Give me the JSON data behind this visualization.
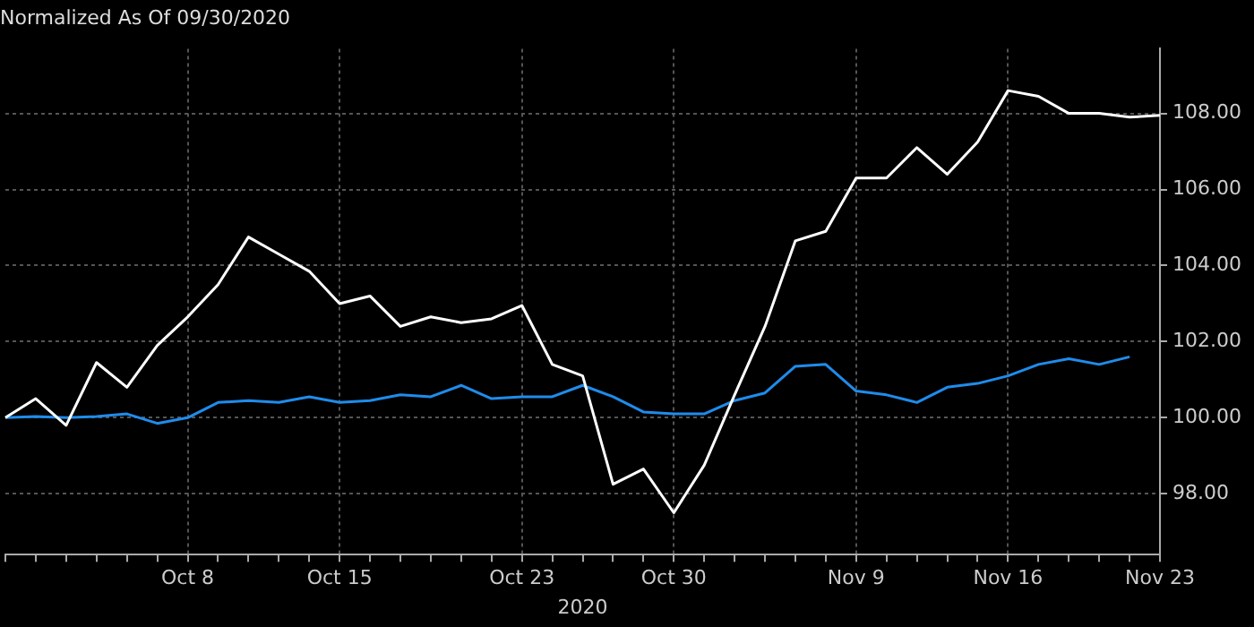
{
  "chart_data": {
    "type": "line",
    "title": "Normalized As Of 09/30/2020",
    "xlabel": "2020",
    "categories": [
      null,
      null,
      null,
      null,
      null,
      null,
      "Oct 8",
      null,
      null,
      null,
      null,
      "Oct 15",
      null,
      null,
      null,
      null,
      null,
      "Oct 23",
      null,
      null,
      null,
      null,
      "Oct 30",
      null,
      null,
      null,
      null,
      null,
      "Nov 9",
      null,
      null,
      null,
      null,
      "Nov 16",
      null,
      null,
      null,
      null,
      "Nov 23"
    ],
    "series": [
      {
        "color": "#ffffff",
        "values": [
          100.0,
          100.5,
          99.8,
          101.45,
          100.8,
          101.9,
          102.65,
          103.5,
          104.75,
          104.3,
          103.85,
          103.0,
          103.2,
          102.4,
          102.65,
          102.5,
          102.6,
          102.95,
          101.4,
          101.1,
          98.25,
          98.65,
          97.5,
          98.75,
          100.6,
          102.4,
          104.65,
          104.9,
          106.3,
          106.3,
          107.1,
          106.4,
          107.25,
          108.6,
          108.45,
          108.0,
          108.0,
          107.9,
          107.95
        ]
      },
      {
        "color": "#1f8ceb",
        "values": [
          100.0,
          100.03,
          100.0,
          100.03,
          100.1,
          99.85,
          100.0,
          100.4,
          100.45,
          100.4,
          100.55,
          100.4,
          100.45,
          100.6,
          100.55,
          100.85,
          100.5,
          100.55,
          100.55,
          100.85,
          100.55,
          100.15,
          100.1,
          100.1,
          100.45,
          100.65,
          101.35,
          101.4,
          100.7,
          100.6,
          100.4,
          100.8,
          100.9,
          101.1,
          101.4,
          101.55,
          101.4,
          101.6,
          null
        ]
      }
    ],
    "ylim": [
      96.4,
      109.7
    ],
    "yticks": [
      {
        "value": 98,
        "label": "98.00"
      },
      {
        "value": 100,
        "label": "100.00"
      },
      {
        "value": 102,
        "label": "102.00"
      },
      {
        "value": 104,
        "label": "104.00"
      },
      {
        "value": 106,
        "label": "106.00"
      },
      {
        "value": 108,
        "label": "108.00"
      }
    ],
    "grid": true,
    "marker": "none",
    "line_style": "solid"
  }
}
